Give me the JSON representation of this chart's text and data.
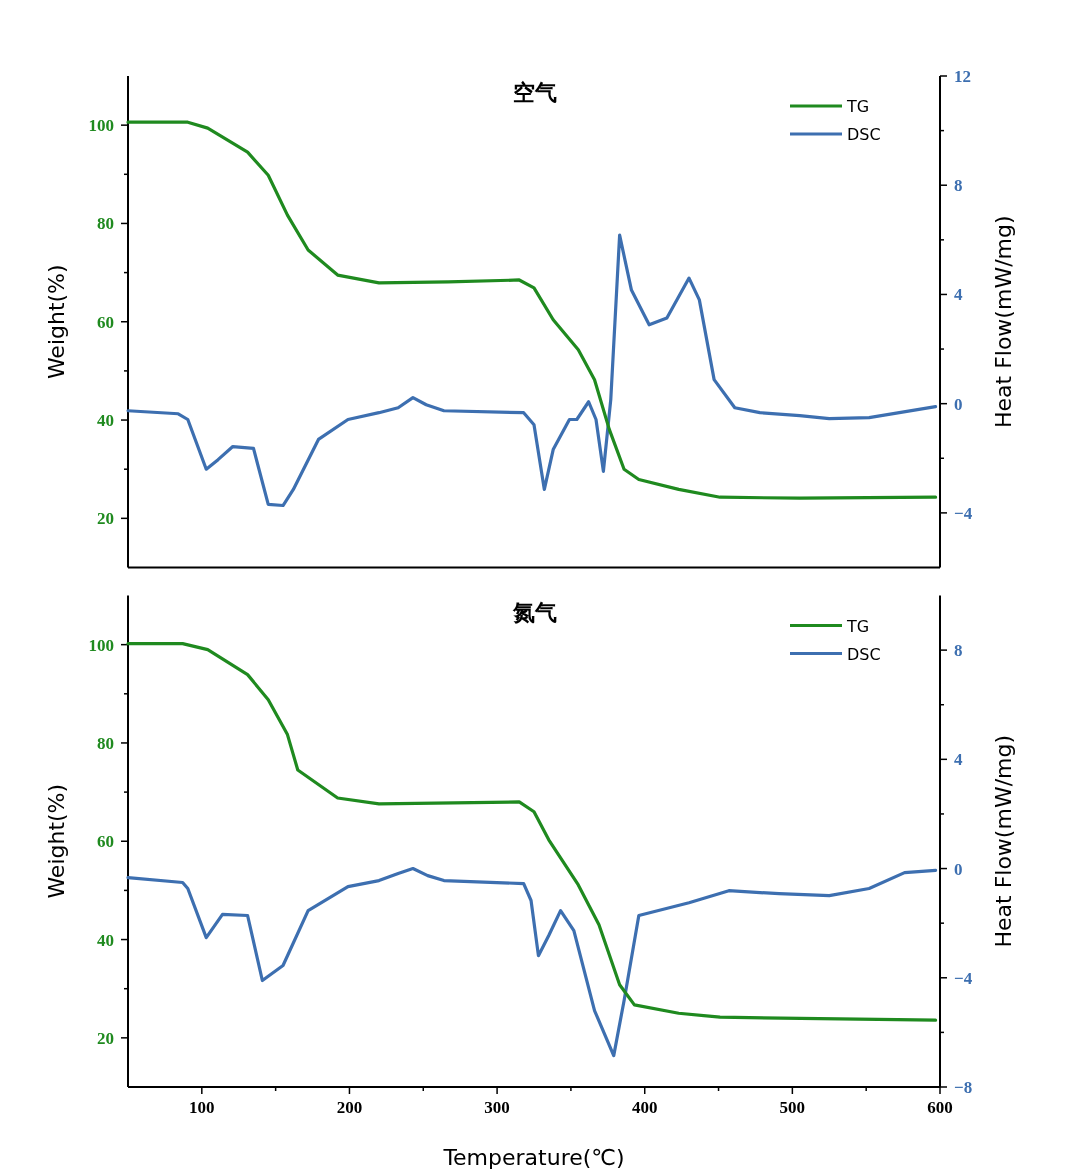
{
  "chart_data": [
    {
      "type": "line",
      "title": "空气",
      "ylabel": "Weight(%)",
      "y2label": "Heat Flow(mW/mg)",
      "xlim": [
        50,
        600
      ],
      "ylim": [
        10,
        110
      ],
      "yticks": [
        20,
        {
          "value": 30,
          "label": null
        },
        40,
        {
          "value": 50,
          "label": null
        },
        60,
        {
          "value": 70,
          "label": null
        },
        80,
        {
          "value": 90,
          "label": null
        },
        100
      ],
      "y2lim": [
        -6,
        12
      ],
      "y2ticks": [
        -4,
        {
          "value": -2,
          "label": null
        },
        0,
        {
          "value": 2,
          "label": null
        },
        4,
        {
          "value": 6,
          "label": null
        },
        8,
        {
          "value": 10,
          "label": null
        },
        12
      ],
      "legend": "top right",
      "tick_labels": [
        "y",
        "y2"
      ],
      "series": [
        {
          "name": "TG",
          "color": "#1f8a1f",
          "x": [
            50,
            90.5,
            104,
            131,
            145,
            158,
            172,
            192,
            220,
            267,
            315,
            325,
            338,
            355,
            366,
            376,
            386,
            396,
            423,
            451,
            505,
            597
          ],
          "values": [
            100.6,
            100.6,
            99.4,
            94.5,
            89.8,
            81.7,
            74.6,
            69.5,
            67.9,
            68.1,
            68.5,
            66.9,
            60.4,
            54.3,
            48.2,
            38.1,
            30,
            27.9,
            25.9,
            24.3,
            24.1,
            24.3
          ]
        },
        {
          "name": "DSC",
          "color": "#3d6fb0",
          "axis": "y2",
          "x": [
            50,
            84,
            90.5,
            103,
            111,
            121,
            135,
            145,
            155,
            162,
            179,
            199,
            220,
            233,
            243,
            252,
            264,
            318,
            325,
            332,
            338,
            349,
            354,
            362,
            367,
            372,
            377,
            383,
            391,
            403,
            415,
            430,
            437,
            447,
            461,
            478,
            505,
            525,
            552,
            597
          ],
          "values": [
            -0.26,
            -0.37,
            -0.58,
            -2.4,
            -2.05,
            -1.57,
            -1.64,
            -3.69,
            -3.73,
            -3.14,
            -1.31,
            -0.58,
            -0.33,
            -0.15,
            0.22,
            -0.04,
            -0.26,
            -0.33,
            -0.77,
            -3.14,
            -1.68,
            -0.58,
            -0.58,
            0.07,
            -0.58,
            -2.48,
            0.15,
            6.17,
            4.16,
            2.89,
            3.14,
            4.6,
            3.8,
            0.88,
            -0.15,
            -0.33,
            -0.44,
            -0.55,
            -0.51,
            -0.11
          ]
        }
      ]
    },
    {
      "type": "line",
      "title": "氮气",
      "xlabel": "Temperature(℃)",
      "ylabel": "Weight(%)",
      "y2label": "Heat Flow(mW/mg)",
      "xlim": [
        50,
        600
      ],
      "xticks": [
        100,
        {
          "value": 150,
          "label": null
        },
        200,
        {
          "value": 250,
          "label": null
        },
        300,
        {
          "value": 350,
          "label": null
        },
        400,
        {
          "value": 450,
          "label": null
        },
        500,
        {
          "value": 550,
          "label": null
        },
        600
      ],
      "ylim": [
        10,
        110
      ],
      "yticks": [
        20,
        {
          "value": 30,
          "label": null
        },
        40,
        {
          "value": 50,
          "label": null
        },
        60,
        {
          "value": 70,
          "label": null
        },
        80,
        {
          "value": 90,
          "label": null
        },
        100
      ],
      "y2lim": [
        -8,
        10
      ],
      "y2ticks": [
        -8,
        {
          "value": -6,
          "label": null
        },
        -4,
        {
          "value": -2,
          "label": null
        },
        0,
        {
          "value": 2,
          "label": null
        },
        4,
        {
          "value": 6,
          "label": null
        },
        8
      ],
      "legend": "top right",
      "series": [
        {
          "name": "TG",
          "color": "#1f8a1f",
          "x": [
            50,
            87,
            104,
            131,
            145,
            158,
            165,
            192,
            220,
            315,
            325,
            335,
            355,
            369,
            383,
            393,
            423,
            451,
            597
          ],
          "values": [
            100.2,
            100.2,
            99,
            93.9,
            88.8,
            81.7,
            74.5,
            68.8,
            67.6,
            68,
            66,
            60.3,
            51.1,
            43,
            30.8,
            26.7,
            25,
            24.2,
            23.6
          ]
        },
        {
          "name": "DSC",
          "color": "#3d6fb0",
          "axis": "y2",
          "x": [
            50,
            87,
            90.5,
            103,
            114,
            131,
            141,
            155,
            172,
            199,
            220,
            233,
            243,
            253,
            264,
            318,
            323,
            328,
            335,
            343,
            352,
            366,
            379,
            386,
            396,
            430,
            457,
            491,
            525,
            552,
            576,
            597
          ],
          "values": [
            -0.33,
            -0.51,
            -0.73,
            -2.53,
            -1.68,
            -1.72,
            -4.1,
            -3.55,
            -1.54,
            -0.66,
            -0.44,
            -0.18,
            0,
            -0.26,
            -0.44,
            -0.55,
            -1.17,
            -3.19,
            -2.45,
            -1.54,
            -2.27,
            -5.2,
            -6.85,
            -4.84,
            -1.72,
            -1.25,
            -0.81,
            -0.92,
            -0.99,
            -0.73,
            -0.15,
            -0.07
          ]
        }
      ]
    }
  ]
}
